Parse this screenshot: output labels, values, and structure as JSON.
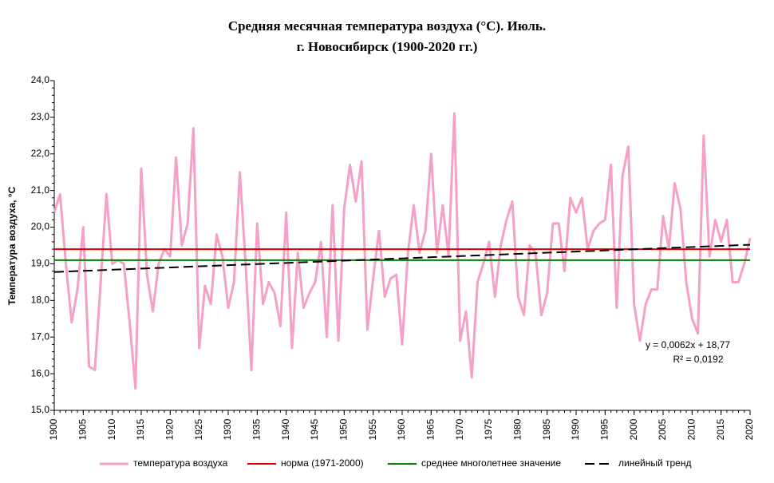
{
  "chart_data": {
    "type": "line",
    "title": "Средняя месячная температура воздуха (°С). Июль.",
    "subtitle": "г. Новосибирск (1900-2020 гг.)",
    "y_label": "Температура воздуха, °С",
    "x": [
      1900,
      1901,
      1902,
      1903,
      1904,
      1905,
      1906,
      1907,
      1908,
      1909,
      1910,
      1911,
      1912,
      1913,
      1914,
      1915,
      1916,
      1917,
      1918,
      1919,
      1920,
      1921,
      1922,
      1923,
      1924,
      1925,
      1926,
      1927,
      1928,
      1929,
      1930,
      1931,
      1932,
      1933,
      1934,
      1935,
      1936,
      1937,
      1938,
      1939,
      1940,
      1941,
      1942,
      1943,
      1944,
      1945,
      1946,
      1947,
      1948,
      1949,
      1950,
      1951,
      1952,
      1953,
      1954,
      1955,
      1956,
      1957,
      1958,
      1959,
      1960,
      1961,
      1962,
      1963,
      1964,
      1965,
      1966,
      1967,
      1968,
      1969,
      1970,
      1971,
      1972,
      1973,
      1974,
      1975,
      1976,
      1977,
      1978,
      1979,
      1980,
      1981,
      1982,
      1983,
      1984,
      1985,
      1986,
      1987,
      1988,
      1989,
      1990,
      1991,
      1992,
      1993,
      1994,
      1995,
      1996,
      1997,
      1998,
      1999,
      2000,
      2001,
      2002,
      2003,
      2004,
      2005,
      2006,
      2007,
      2008,
      2009,
      2010,
      2011,
      2012,
      2013,
      2014,
      2015,
      2016,
      2017,
      2018,
      2019,
      2020
    ],
    "xlim": [
      1900,
      2020
    ],
    "xticks": [
      1900,
      1905,
      1910,
      1915,
      1920,
      1925,
      1930,
      1935,
      1940,
      1945,
      1950,
      1955,
      1960,
      1965,
      1970,
      1975,
      1980,
      1985,
      1990,
      1995,
      2000,
      2005,
      2010,
      2015,
      2020
    ],
    "ylim": [
      15,
      24
    ],
    "yticks": [
      {
        "value": 15,
        "label": "15,0"
      },
      {
        "value": 16,
        "label": "16,0"
      },
      {
        "value": 17,
        "label": "17,0"
      },
      {
        "value": 18,
        "label": "18,0"
      },
      {
        "value": 19,
        "label": "19,0"
      },
      {
        "value": 20,
        "label": "20,0"
      },
      {
        "value": 21,
        "label": "21,0"
      },
      {
        "value": 22,
        "label": "22,0"
      },
      {
        "value": 23,
        "label": "23,0"
      },
      {
        "value": 24,
        "label": "24,0"
      }
    ],
    "series": [
      {
        "name": "температура воздуха",
        "color": "#f4a0c8",
        "values": [
          20.4,
          20.9,
          19.0,
          17.4,
          18.3,
          20.0,
          16.2,
          16.1,
          18.5,
          20.9,
          19.0,
          19.1,
          19.0,
          17.4,
          15.6,
          21.6,
          18.7,
          17.7,
          19.0,
          19.4,
          19.2,
          21.9,
          19.5,
          20.1,
          22.7,
          16.7,
          18.4,
          17.9,
          19.8,
          19.2,
          17.8,
          18.5,
          21.5,
          19.0,
          16.1,
          20.1,
          17.9,
          18.5,
          18.2,
          17.3,
          20.4,
          16.7,
          19.3,
          17.8,
          18.2,
          18.5,
          19.6,
          17.0,
          20.6,
          16.9,
          20.5,
          21.7,
          20.7,
          21.8,
          17.2,
          18.6,
          19.9,
          18.1,
          18.6,
          18.7,
          16.8,
          19.3,
          20.6,
          19.3,
          19.9,
          22.0,
          19.3,
          20.6,
          19.2,
          23.1,
          16.9,
          17.7,
          15.9,
          18.5,
          19.0,
          19.6,
          18.1,
          19.5,
          20.2,
          20.7,
          18.1,
          17.6,
          19.5,
          19.3,
          17.6,
          18.2,
          20.1,
          20.1,
          18.8,
          20.8,
          20.4,
          20.8,
          19.4,
          19.9,
          20.1,
          20.2,
          21.7,
          17.8,
          21.4,
          22.2,
          17.9,
          16.9,
          17.9,
          18.3,
          18.3,
          20.3,
          19.4,
          21.2,
          20.5,
          18.5,
          17.5,
          17.1,
          22.5,
          19.2,
          20.2,
          19.6,
          20.2,
          18.5,
          18.5,
          19.0,
          19.7
        ]
      },
      {
        "name": "норма (1971-2000)",
        "color": "#e00000",
        "value": 19.4
      },
      {
        "name": "среднее многолетнее значение",
        "color": "#008000",
        "value": 19.1
      },
      {
        "name": "линейный тренд",
        "color": "#000000",
        "slope": 0.0062,
        "intercept": 18.77,
        "equation": "y = 0,0062x + 18,77",
        "r2": "R² = 0,0192"
      }
    ]
  }
}
